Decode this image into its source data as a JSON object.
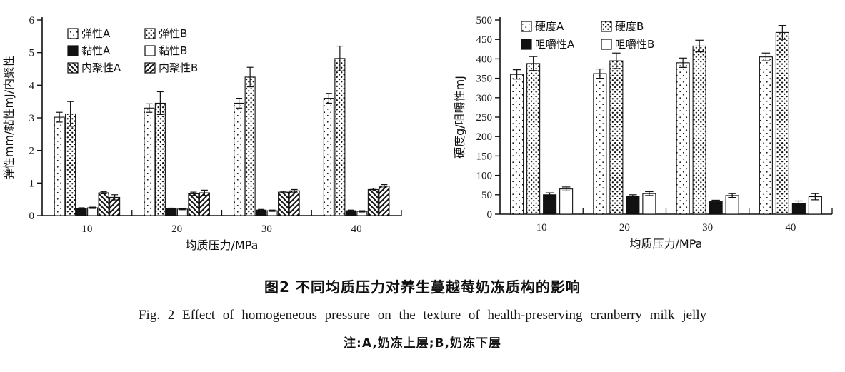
{
  "caption": {
    "zh": "图2  不同均质压力对养生蔓越莓奶冻质构的影响",
    "en": "Fig. 2  Effect of homogeneous pressure on the texture of health-preserving cranberry milk jelly",
    "note": "注:A,奶冻上层;B,奶冻下层"
  },
  "colors": {
    "ink": "#111111",
    "background": "#ffffff"
  },
  "chart_data": [
    {
      "type": "bar",
      "title": "",
      "xlabel": "均质压力/MPa",
      "ylabel": "弹性mm/黏性mJ/内聚性",
      "categories": [
        "10",
        "20",
        "30",
        "40"
      ],
      "ylim": [
        0,
        6
      ],
      "yticks": [
        0,
        1,
        2,
        3,
        4,
        5,
        6
      ],
      "grid": false,
      "legend_position": "top-left-inside",
      "legend_columns": 2,
      "error_bars": true,
      "series": [
        {
          "name": "弹性A",
          "pattern": "dots-sparse",
          "values": [
            3.02,
            3.3,
            3.45,
            3.6
          ],
          "errors": [
            0.15,
            0.13,
            0.15,
            0.15
          ]
        },
        {
          "name": "弹性B",
          "pattern": "dots-dense",
          "values": [
            3.12,
            3.45,
            4.25,
            4.82
          ],
          "errors": [
            0.38,
            0.35,
            0.3,
            0.38
          ]
        },
        {
          "name": "黏性A",
          "pattern": "solid-black",
          "values": [
            0.22,
            0.21,
            0.17,
            0.15
          ],
          "errors": [
            0.02,
            0.02,
            0.02,
            0.02
          ]
        },
        {
          "name": "黏性B",
          "pattern": "white",
          "values": [
            0.24,
            0.2,
            0.15,
            0.13
          ],
          "errors": [
            0.02,
            0.02,
            0.02,
            0.02
          ]
        },
        {
          "name": "内聚性A",
          "pattern": "hatch-back",
          "values": [
            0.7,
            0.67,
            0.72,
            0.8
          ],
          "errors": [
            0.03,
            0.05,
            0.03,
            0.04
          ]
        },
        {
          "name": "内聚性B",
          "pattern": "hatch-fwd",
          "values": [
            0.56,
            0.7,
            0.76,
            0.9
          ],
          "errors": [
            0.08,
            0.08,
            0.04,
            0.05
          ]
        }
      ]
    },
    {
      "type": "bar",
      "title": "",
      "xlabel": "均质压力/MPa",
      "ylabel": "硬度g/咀嚼性mJ",
      "categories": [
        "10",
        "20",
        "30",
        "40"
      ],
      "ylim": [
        0,
        500
      ],
      "yticks": [
        0,
        50,
        100,
        150,
        200,
        250,
        300,
        350,
        400,
        450,
        500
      ],
      "grid": false,
      "legend_position": "top-left-inside",
      "legend_columns": 2,
      "error_bars": true,
      "series": [
        {
          "name": "硬度A",
          "pattern": "dots-sparse",
          "values": [
            360,
            362,
            390,
            405
          ],
          "errors": [
            12,
            12,
            12,
            10
          ]
        },
        {
          "name": "硬度B",
          "pattern": "dots-dense",
          "values": [
            388,
            395,
            433,
            468
          ],
          "errors": [
            18,
            20,
            15,
            18
          ]
        },
        {
          "name": "咀嚼性A",
          "pattern": "solid-black",
          "values": [
            50,
            45,
            32,
            28
          ],
          "errors": [
            5,
            5,
            4,
            6
          ]
        },
        {
          "name": "咀嚼性B",
          "pattern": "white",
          "values": [
            65,
            53,
            48,
            45
          ],
          "errors": [
            5,
            5,
            5,
            8
          ]
        }
      ]
    }
  ]
}
